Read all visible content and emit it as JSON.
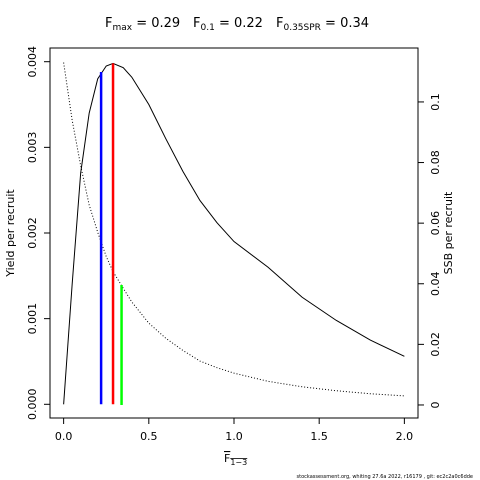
{
  "chart_data": {
    "type": "line",
    "title": [
      {
        "main": "F",
        "sub": "max",
        "rest": " = 0.29"
      },
      {
        "main": "F",
        "sub": "0.1",
        "rest": " = 0.22"
      },
      {
        "main": "F",
        "sub": "0.35SPR",
        "rest": " = 0.34"
      }
    ],
    "xlabel": {
      "main": "F",
      "sub": "1−3"
    },
    "ylabel": "Yield per recruit",
    "y2label": "SSB per recruit",
    "footer": "stockassessment.org, whiting 27.6a 2022, r16179 , git: ec2c2a0c6dde",
    "x": [
      0,
      0.05,
      0.1,
      0.15,
      0.2,
      0.25,
      0.29,
      0.35,
      0.4,
      0.5,
      0.6,
      0.7,
      0.8,
      0.9,
      1.0,
      1.2,
      1.4,
      1.6,
      1.8,
      2.0
    ],
    "series": [
      {
        "name": "Yield per recruit",
        "color": "#000000",
        "dash": "solid",
        "values": [
          0,
          0.0014,
          0.0027,
          0.0034,
          0.0038,
          0.00395,
          0.00398,
          0.00393,
          0.00382,
          0.0035,
          0.0031,
          0.00272,
          0.00238,
          0.00212,
          0.0019,
          0.0016,
          0.00125,
          0.00098,
          0.00075,
          0.00056
        ]
      },
      {
        "name": "SSB per recruit",
        "color": "#000000",
        "dash": "dotted",
        "axis": "y2",
        "values": [
          0.113,
          0.094,
          0.079,
          0.066,
          0.057,
          0.049,
          0.044,
          0.0385,
          0.034,
          0.027,
          0.022,
          0.018,
          0.0145,
          0.0123,
          0.0105,
          0.0078,
          0.006,
          0.0047,
          0.0037,
          0.003
        ]
      }
    ],
    "reference_lines": [
      {
        "x": 0.22,
        "top": 0.00388,
        "color": "#0000ff"
      },
      {
        "x": 0.29,
        "top": 0.00398,
        "color": "#ff0000"
      },
      {
        "x": 0.34,
        "top": 0.0396,
        "color": "#00ff00",
        "axis": "y2"
      }
    ],
    "xlim": [
      -0.08,
      2.08
    ],
    "ylim": [
      -0.00016,
      0.00416
    ],
    "y2lim": [
      -0.0043,
      0.1178
    ],
    "xticks": [
      {
        "value": 0,
        "label": "0.0"
      },
      0.5,
      {
        "value": 1,
        "label": "1.0"
      },
      1.5,
      {
        "value": 2,
        "label": "2.0"
      }
    ],
    "yticks": [
      {
        "value": 0,
        "label": "0.000"
      },
      0.001,
      0.002,
      0.003,
      0.004
    ],
    "y2ticks": [
      0,
      0.02,
      0.04,
      0.06,
      0.08,
      0.1
    ]
  }
}
